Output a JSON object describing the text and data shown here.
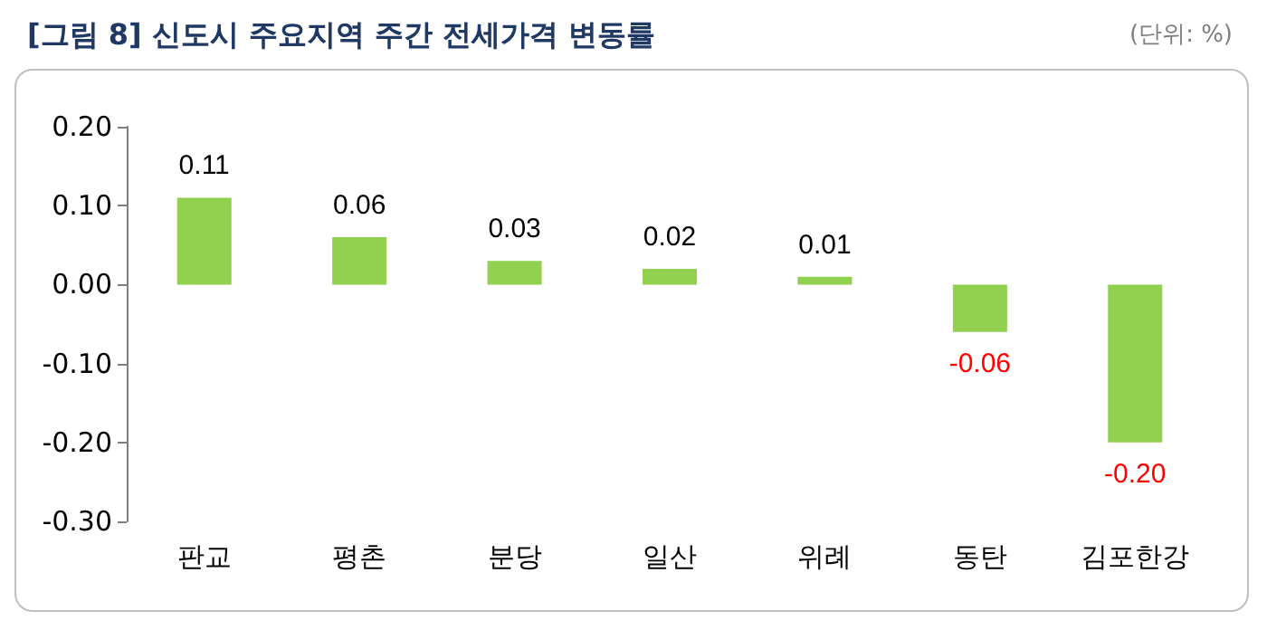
{
  "chart_data": {
    "type": "bar",
    "title": "[그림 8] 신도시 주요지역 주간 전세가격 변동률",
    "subtitle": "(단위: %)",
    "categories": [
      "판교",
      "평촌",
      "분당",
      "일산",
      "위례",
      "동탄",
      "김포한강"
    ],
    "values": [
      0.11,
      0.06,
      0.03,
      0.02,
      0.01,
      -0.06,
      -0.2
    ],
    "value_labels": [
      "0.11",
      "0.06",
      "0.03",
      "0.02",
      "0.01",
      "-0.06",
      "-0.20"
    ],
    "color": "#92d050",
    "ylim": [
      -0.3,
      0.2
    ],
    "yticks": [
      {
        "value": -0.3,
        "label": "-0.30"
      },
      {
        "value": -0.2,
        "label": "-0.20"
      },
      {
        "value": -0.1,
        "label": "-0.10"
      },
      {
        "value": 0,
        "label": "0.00"
      },
      {
        "value": 0.1,
        "label": "0.10"
      },
      {
        "value": 0.2,
        "label": "0.20"
      }
    ],
    "grid": false
  }
}
